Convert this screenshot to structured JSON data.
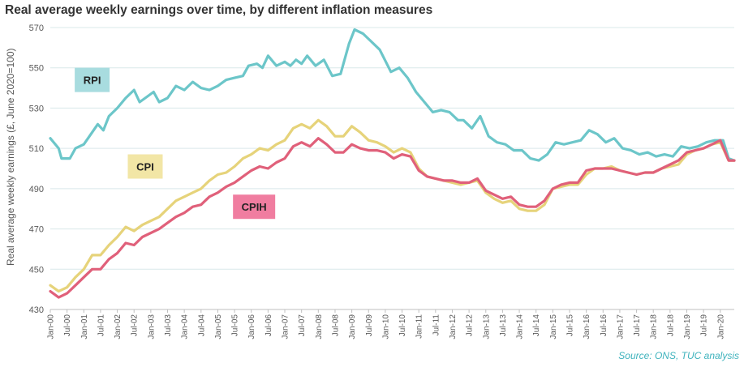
{
  "chart_data": {
    "type": "line",
    "title": "Real average weekly earnings over time, by different inflation measures",
    "ylabel": "Real average weekly earnings (£, June 2020=100)",
    "xlabel": "",
    "source": "Source: ONS, TUC analysis",
    "ylim": [
      430,
      570
    ],
    "yticks": [
      430,
      450,
      470,
      490,
      510,
      530,
      550,
      570
    ],
    "xlim": [
      "2000-01",
      "2020-06"
    ],
    "xtick_labels": [
      "Jan-00",
      "Jul-00",
      "Jan-01",
      "Jul-01",
      "Jan-02",
      "Jul-02",
      "Jan-03",
      "Jul-03",
      "Jan-04",
      "Jul-04",
      "Jan-05",
      "Jul-05",
      "Jan-06",
      "Jul-06",
      "Jan-07",
      "Jul-07",
      "Jan-08",
      "Jul-08",
      "Jan-09",
      "Jul-09",
      "Jan-10",
      "Jul-10",
      "Jan-11",
      "Jul-11",
      "Jan-12",
      "Jul-12",
      "Jan-13",
      "Jul-13",
      "Jan-14",
      "Jul-14",
      "Jan-15",
      "Jul-15",
      "Jan-16",
      "Jul-16",
      "Jan-17",
      "Jul-17",
      "Jan-18",
      "Jul-18",
      "Jan-19",
      "Jul-19",
      "Jan-20"
    ],
    "grid": "horizontal",
    "series": [
      {
        "name": "RPI",
        "color": "#6cc6c9",
        "label_color": "#a8dcdf",
        "points": [
          [
            "2000-01",
            515
          ],
          [
            "2000-04",
            510
          ],
          [
            "2000-05",
            505
          ],
          [
            "2000-08",
            505
          ],
          [
            "2000-10",
            510
          ],
          [
            "2001-01",
            512
          ],
          [
            "2001-04",
            518
          ],
          [
            "2001-06",
            522
          ],
          [
            "2001-08",
            519
          ],
          [
            "2001-10",
            526
          ],
          [
            "2002-01",
            530
          ],
          [
            "2002-04",
            535
          ],
          [
            "2002-07",
            539
          ],
          [
            "2002-09",
            533
          ],
          [
            "2002-11",
            535
          ],
          [
            "2003-02",
            538
          ],
          [
            "2003-04",
            533
          ],
          [
            "2003-07",
            535
          ],
          [
            "2003-10",
            541
          ],
          [
            "2004-01",
            539
          ],
          [
            "2004-04",
            543
          ],
          [
            "2004-07",
            540
          ],
          [
            "2004-10",
            539
          ],
          [
            "2005-01",
            541
          ],
          [
            "2005-04",
            544
          ],
          [
            "2005-07",
            545
          ],
          [
            "2005-10",
            546
          ],
          [
            "2005-12",
            551
          ],
          [
            "2006-03",
            552
          ],
          [
            "2006-05",
            550
          ],
          [
            "2006-07",
            556
          ],
          [
            "2006-10",
            551
          ],
          [
            "2007-01",
            553
          ],
          [
            "2007-03",
            551
          ],
          [
            "2007-05",
            554
          ],
          [
            "2007-07",
            552
          ],
          [
            "2007-09",
            556
          ],
          [
            "2007-12",
            551
          ],
          [
            "2008-03",
            554
          ],
          [
            "2008-06",
            546
          ],
          [
            "2008-09",
            547
          ],
          [
            "2008-12",
            562
          ],
          [
            "2009-02",
            569
          ],
          [
            "2009-05",
            567
          ],
          [
            "2009-08",
            563
          ],
          [
            "2009-11",
            559
          ],
          [
            "2010-03",
            548
          ],
          [
            "2010-06",
            550
          ],
          [
            "2010-09",
            545
          ],
          [
            "2010-12",
            538
          ],
          [
            "2011-03",
            533
          ],
          [
            "2011-06",
            528
          ],
          [
            "2011-09",
            529
          ],
          [
            "2011-12",
            528
          ],
          [
            "2012-03",
            524
          ],
          [
            "2012-05",
            524
          ],
          [
            "2012-08",
            520
          ],
          [
            "2012-11",
            526
          ],
          [
            "2013-02",
            516
          ],
          [
            "2013-05",
            513
          ],
          [
            "2013-08",
            512
          ],
          [
            "2013-11",
            509
          ],
          [
            "2014-02",
            509
          ],
          [
            "2014-05",
            505
          ],
          [
            "2014-08",
            504
          ],
          [
            "2014-11",
            507
          ],
          [
            "2015-02",
            513
          ],
          [
            "2015-05",
            512
          ],
          [
            "2015-08",
            513
          ],
          [
            "2015-11",
            514
          ],
          [
            "2016-02",
            519
          ],
          [
            "2016-05",
            517
          ],
          [
            "2016-08",
            513
          ],
          [
            "2016-11",
            515
          ],
          [
            "2017-02",
            510
          ],
          [
            "2017-05",
            509
          ],
          [
            "2017-08",
            507
          ],
          [
            "2017-11",
            508
          ],
          [
            "2018-02",
            506
          ],
          [
            "2018-05",
            507
          ],
          [
            "2018-08",
            506
          ],
          [
            "2018-11",
            511
          ],
          [
            "2019-02",
            510
          ],
          [
            "2019-05",
            511
          ],
          [
            "2019-08",
            513
          ],
          [
            "2019-11",
            514
          ],
          [
            "2020-02",
            514
          ],
          [
            "2020-04",
            505
          ],
          [
            "2020-06",
            504
          ]
        ]
      },
      {
        "name": "CPI",
        "color": "#e6d37a",
        "label_color": "#f2e6a6",
        "points": [
          [
            "2000-01",
            442
          ],
          [
            "2000-04",
            439
          ],
          [
            "2000-07",
            441
          ],
          [
            "2000-10",
            446
          ],
          [
            "2001-01",
            450
          ],
          [
            "2001-04",
            457
          ],
          [
            "2001-07",
            457
          ],
          [
            "2001-10",
            462
          ],
          [
            "2002-01",
            466
          ],
          [
            "2002-04",
            471
          ],
          [
            "2002-07",
            469
          ],
          [
            "2002-10",
            472
          ],
          [
            "2003-01",
            474
          ],
          [
            "2003-04",
            476
          ],
          [
            "2003-07",
            480
          ],
          [
            "2003-10",
            484
          ],
          [
            "2004-01",
            486
          ],
          [
            "2004-04",
            488
          ],
          [
            "2004-07",
            490
          ],
          [
            "2004-10",
            494
          ],
          [
            "2005-01",
            497
          ],
          [
            "2005-04",
            498
          ],
          [
            "2005-07",
            501
          ],
          [
            "2005-10",
            505
          ],
          [
            "2006-01",
            507
          ],
          [
            "2006-04",
            510
          ],
          [
            "2006-07",
            509
          ],
          [
            "2006-10",
            512
          ],
          [
            "2007-01",
            514
          ],
          [
            "2007-04",
            520
          ],
          [
            "2007-07",
            522
          ],
          [
            "2007-10",
            520
          ],
          [
            "2008-01",
            524
          ],
          [
            "2008-04",
            521
          ],
          [
            "2008-07",
            516
          ],
          [
            "2008-10",
            516
          ],
          [
            "2009-01",
            521
          ],
          [
            "2009-04",
            518
          ],
          [
            "2009-07",
            514
          ],
          [
            "2009-10",
            513
          ],
          [
            "2010-01",
            511
          ],
          [
            "2010-04",
            508
          ],
          [
            "2010-07",
            510
          ],
          [
            "2010-10",
            508
          ],
          [
            "2011-01",
            500
          ],
          [
            "2011-04",
            496
          ],
          [
            "2011-07",
            495
          ],
          [
            "2011-10",
            494
          ],
          [
            "2012-01",
            493
          ],
          [
            "2012-04",
            492
          ],
          [
            "2012-07",
            493
          ],
          [
            "2012-10",
            494
          ],
          [
            "2013-01",
            488
          ],
          [
            "2013-04",
            485
          ],
          [
            "2013-07",
            483
          ],
          [
            "2013-10",
            484
          ],
          [
            "2014-01",
            480
          ],
          [
            "2014-04",
            479
          ],
          [
            "2014-07",
            479
          ],
          [
            "2014-10",
            482
          ],
          [
            "2015-01",
            490
          ],
          [
            "2015-04",
            491
          ],
          [
            "2015-07",
            492
          ],
          [
            "2015-10",
            492
          ],
          [
            "2016-01",
            497
          ],
          [
            "2016-04",
            500
          ],
          [
            "2016-07",
            500
          ],
          [
            "2016-10",
            501
          ],
          [
            "2017-01",
            499
          ],
          [
            "2017-04",
            498
          ],
          [
            "2017-07",
            497
          ],
          [
            "2017-10",
            498
          ],
          [
            "2018-01",
            498
          ],
          [
            "2018-04",
            500
          ],
          [
            "2018-07",
            501
          ],
          [
            "2018-10",
            502
          ],
          [
            "2019-01",
            507
          ],
          [
            "2019-04",
            509
          ],
          [
            "2019-07",
            510
          ],
          [
            "2019-10",
            512
          ],
          [
            "2020-01",
            513
          ],
          [
            "2020-04",
            504
          ],
          [
            "2020-06",
            504
          ]
        ]
      },
      {
        "name": "CPIH",
        "color": "#e0607a",
        "label_color": "#f07da0",
        "points": [
          [
            "2000-01",
            439
          ],
          [
            "2000-04",
            436
          ],
          [
            "2000-07",
            438
          ],
          [
            "2000-10",
            442
          ],
          [
            "2001-01",
            446
          ],
          [
            "2001-04",
            450
          ],
          [
            "2001-07",
            450
          ],
          [
            "2001-10",
            455
          ],
          [
            "2002-01",
            458
          ],
          [
            "2002-04",
            463
          ],
          [
            "2002-07",
            462
          ],
          [
            "2002-10",
            466
          ],
          [
            "2003-01",
            468
          ],
          [
            "2003-04",
            470
          ],
          [
            "2003-07",
            473
          ],
          [
            "2003-10",
            476
          ],
          [
            "2004-01",
            478
          ],
          [
            "2004-04",
            481
          ],
          [
            "2004-07",
            482
          ],
          [
            "2004-10",
            486
          ],
          [
            "2005-01",
            488
          ],
          [
            "2005-04",
            491
          ],
          [
            "2005-07",
            493
          ],
          [
            "2005-10",
            496
          ],
          [
            "2006-01",
            499
          ],
          [
            "2006-04",
            501
          ],
          [
            "2006-07",
            500
          ],
          [
            "2006-10",
            503
          ],
          [
            "2007-01",
            505
          ],
          [
            "2007-04",
            511
          ],
          [
            "2007-07",
            513
          ],
          [
            "2007-10",
            511
          ],
          [
            "2008-01",
            515
          ],
          [
            "2008-04",
            512
          ],
          [
            "2008-07",
            508
          ],
          [
            "2008-10",
            508
          ],
          [
            "2009-01",
            512
          ],
          [
            "2009-04",
            510
          ],
          [
            "2009-07",
            509
          ],
          [
            "2009-10",
            509
          ],
          [
            "2010-01",
            508
          ],
          [
            "2010-04",
            505
          ],
          [
            "2010-07",
            507
          ],
          [
            "2010-10",
            506
          ],
          [
            "2011-01",
            499
          ],
          [
            "2011-04",
            496
          ],
          [
            "2011-07",
            495
          ],
          [
            "2011-10",
            494
          ],
          [
            "2012-01",
            494
          ],
          [
            "2012-04",
            493
          ],
          [
            "2012-07",
            493
          ],
          [
            "2012-10",
            495
          ],
          [
            "2013-01",
            489
          ],
          [
            "2013-04",
            487
          ],
          [
            "2013-07",
            485
          ],
          [
            "2013-10",
            486
          ],
          [
            "2014-01",
            482
          ],
          [
            "2014-04",
            481
          ],
          [
            "2014-07",
            481
          ],
          [
            "2014-10",
            484
          ],
          [
            "2015-01",
            490
          ],
          [
            "2015-04",
            492
          ],
          [
            "2015-07",
            493
          ],
          [
            "2015-10",
            493
          ],
          [
            "2016-01",
            499
          ],
          [
            "2016-04",
            500
          ],
          [
            "2016-07",
            500
          ],
          [
            "2016-10",
            500
          ],
          [
            "2017-01",
            499
          ],
          [
            "2017-04",
            498
          ],
          [
            "2017-07",
            497
          ],
          [
            "2017-10",
            498
          ],
          [
            "2018-01",
            498
          ],
          [
            "2018-04",
            500
          ],
          [
            "2018-07",
            502
          ],
          [
            "2018-10",
            504
          ],
          [
            "2019-01",
            508
          ],
          [
            "2019-04",
            509
          ],
          [
            "2019-07",
            510
          ],
          [
            "2019-10",
            512
          ],
          [
            "2020-01",
            514
          ],
          [
            "2020-04",
            504
          ],
          [
            "2020-06",
            504
          ]
        ]
      }
    ]
  }
}
